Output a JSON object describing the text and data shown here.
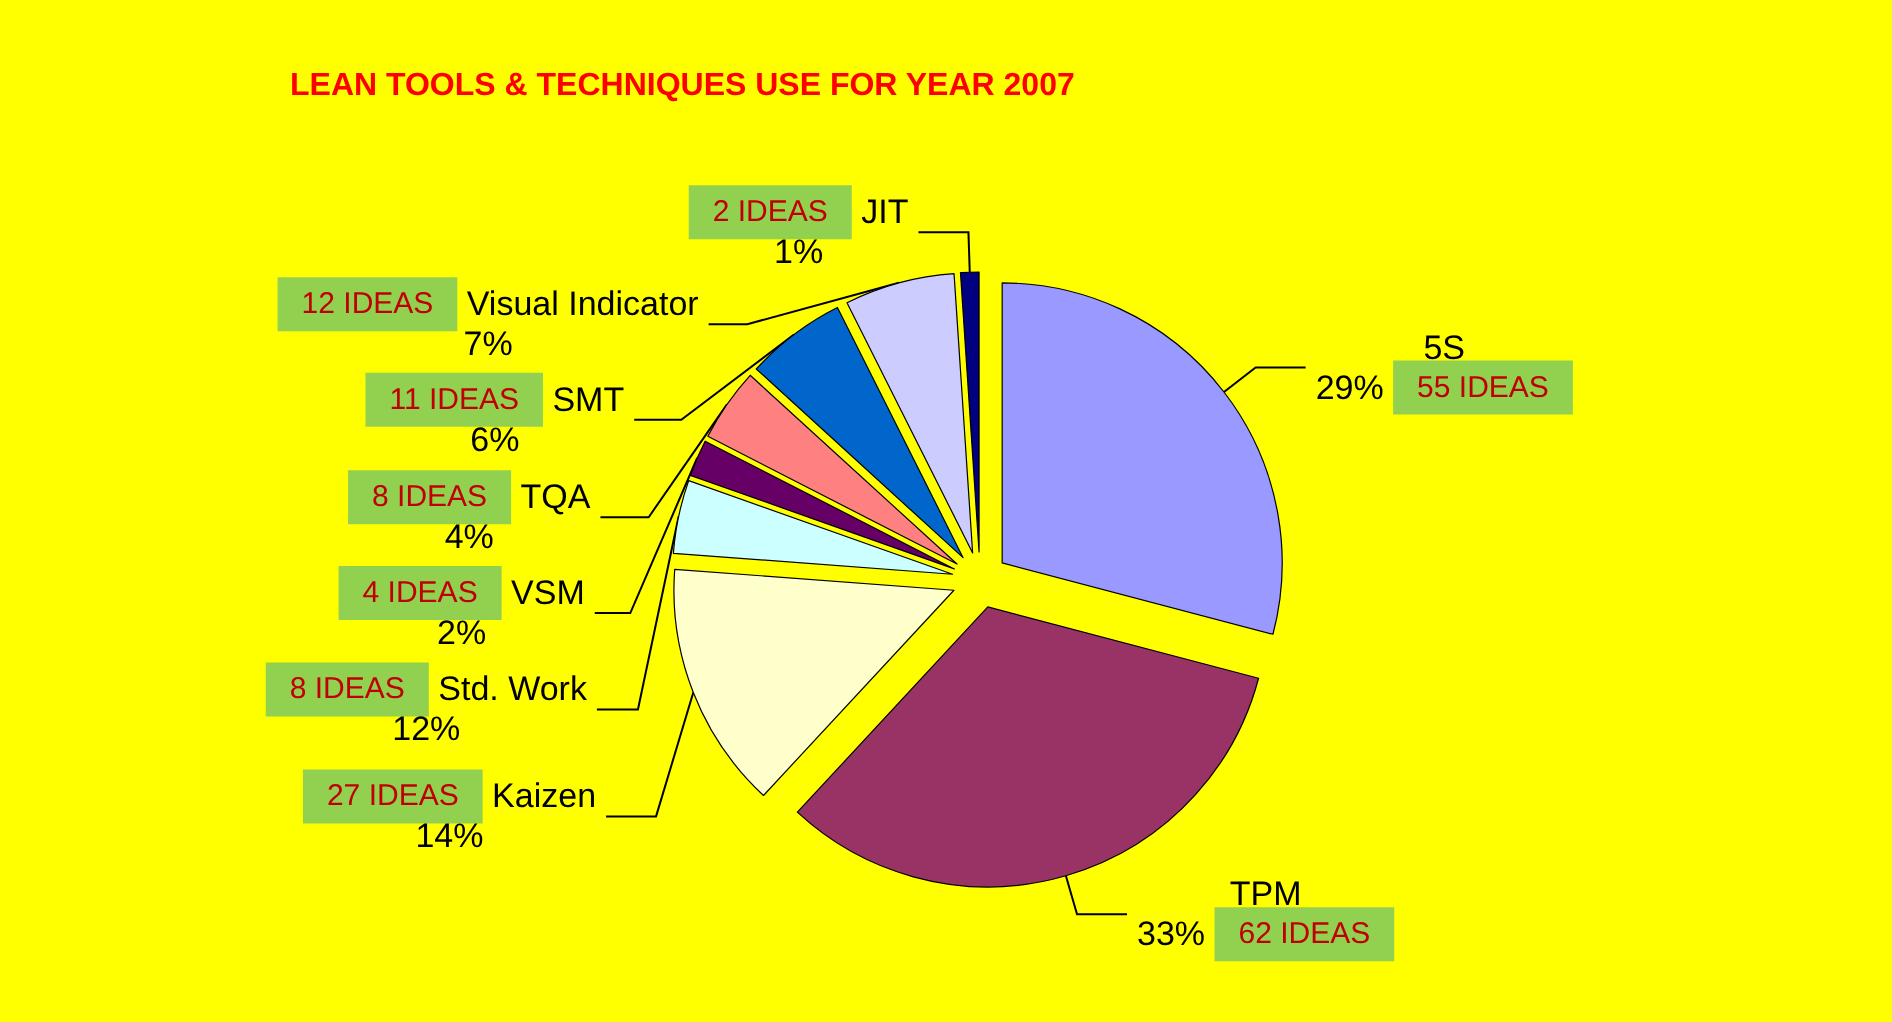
{
  "chart_data": {
    "type": "pie",
    "title": "LEAN TOOLS & TECHNIQUES USE FOR YEAR 2007",
    "categories": [
      "5S",
      "TPM",
      "Kaizen",
      "Std. Work",
      "VSM",
      "TQA",
      "SMT",
      "Visual Indicator",
      "JIT"
    ],
    "values": [
      55,
      62,
      27,
      8,
      4,
      8,
      11,
      12,
      2
    ],
    "value_labels": [
      "55 IDEAS",
      "62 IDEAS",
      "27 IDEAS",
      "8 IDEAS",
      "4 IDEAS",
      "8 IDEAS",
      "11 IDEAS",
      "12 IDEAS",
      "2 IDEAS"
    ],
    "colors": [
      "#9999ff",
      "#993366",
      "#ffffcc",
      "#ccffff",
      "#660066",
      "#ff8080",
      "#0066cc",
      "#ccccff",
      "#000080"
    ],
    "annotations": [
      "29%",
      "33%",
      "14%",
      "12%",
      "2%",
      "4%",
      "6%",
      "7%",
      "1%"
    ]
  }
}
